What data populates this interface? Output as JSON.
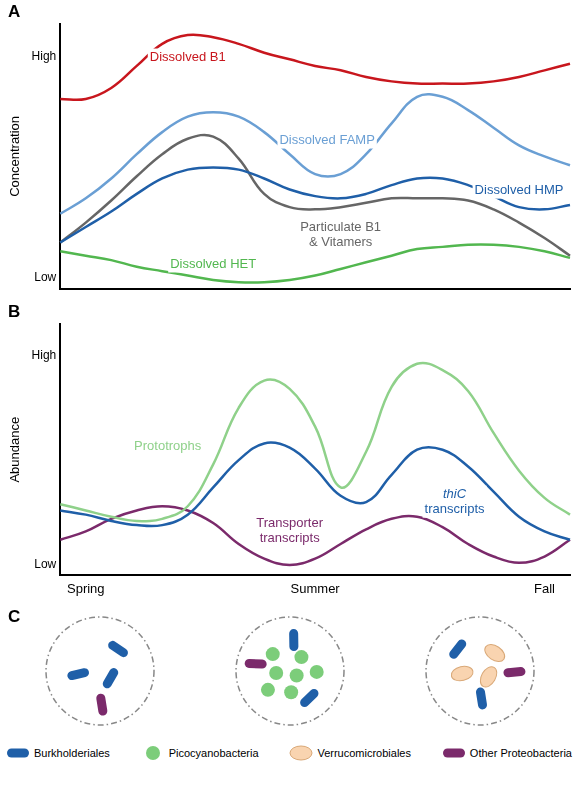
{
  "chart_data": [
    {
      "panel": "A",
      "type": "line",
      "y_label": "Concentration",
      "categories": [
        null,
        null,
        null,
        null,
        null,
        null,
        null,
        null,
        null,
        null,
        null,
        null,
        null,
        null,
        null,
        null,
        null,
        null,
        null,
        null,
        null
      ],
      "series": [
        {
          "name": "Dissolved B1",
          "color": "#c8161d",
          "values": [
            8.1,
            8.1,
            8.6,
            9.6,
            10.6,
            11.0,
            10.9,
            10.6,
            10.2,
            9.9,
            9.6,
            9.4,
            9.1,
            8.9,
            8.8,
            8.8,
            8.8,
            8.9,
            9.1,
            9.4,
            9.7
          ]
        },
        {
          "name": "Dissolved FAMP",
          "color": "#6a9fd4",
          "values": [
            2.9,
            3.6,
            4.5,
            5.6,
            6.6,
            7.3,
            7.5,
            7.3,
            6.6,
            5.6,
            4.7,
            4.7,
            5.6,
            7.0,
            8.2,
            8.2,
            7.6,
            6.8,
            6.0,
            5.5,
            5.1
          ]
        },
        {
          "name": "Dissolved HMP",
          "color": "#1f5fa8",
          "values": [
            1.6,
            2.3,
            3.0,
            3.8,
            4.5,
            4.9,
            5.0,
            4.9,
            4.5,
            4.0,
            3.7,
            3.6,
            3.8,
            4.2,
            4.5,
            4.5,
            4.2,
            3.7,
            3.2,
            3.1,
            3.3
          ]
        },
        {
          "name": "Particulate B1 & Vitamers",
          "color": "#666666",
          "values": [
            1.6,
            2.5,
            3.5,
            4.6,
            5.6,
            6.3,
            6.4,
            5.4,
            3.8,
            3.2,
            3.1,
            3.2,
            3.4,
            3.6,
            3.6,
            3.6,
            3.5,
            3.1,
            2.5,
            1.8,
            1.0
          ]
        },
        {
          "name": "Dissolved HET",
          "color": "#52b74f",
          "values": [
            1.2,
            1.0,
            0.8,
            0.5,
            0.3,
            0.1,
            -0.1,
            -0.2,
            -0.2,
            -0.1,
            0.1,
            0.4,
            0.7,
            1.0,
            1.3,
            1.4,
            1.5,
            1.5,
            1.4,
            1.2,
            0.9
          ]
        }
      ],
      "ylim": [
        -0.5,
        11.5
      ],
      "yticks": [
        {
          "value": 0,
          "label": "Low"
        },
        {
          "value": 10,
          "label": "High"
        }
      ],
      "grid": false,
      "tick_labels": "y"
    },
    {
      "panel": "B",
      "type": "line",
      "y_label": "Abundance",
      "categories": [
        null,
        "Spring",
        null,
        null,
        null,
        null,
        null,
        null,
        null,
        null,
        "Summer",
        null,
        null,
        null,
        null,
        null,
        null,
        null,
        null,
        "Fall",
        null
      ],
      "series": [
        {
          "name": "Prototrophs",
          "color": "#8fd18a",
          "values": [
            2.9,
            2.6,
            2.3,
            2.1,
            2.2,
            2.8,
            4.8,
            7.5,
            8.8,
            8.4,
            6.6,
            3.7,
            5.4,
            8.5,
            9.6,
            9.3,
            8.3,
            6.3,
            4.5,
            3.2,
            2.4
          ]
        },
        {
          "name": "thiC transcripts",
          "color": "#1f5fa8",
          "values": [
            2.6,
            2.4,
            2.1,
            1.9,
            1.9,
            2.4,
            3.7,
            5.0,
            5.8,
            5.6,
            4.6,
            3.3,
            3.0,
            4.3,
            5.5,
            5.5,
            4.7,
            3.5,
            2.3,
            1.6,
            1.2
          ]
        },
        {
          "name": "Transporter transcripts",
          "color": "#7b2a6b",
          "values": [
            1.2,
            1.6,
            2.2,
            2.6,
            2.8,
            2.6,
            2.0,
            1.0,
            0.3,
            0.0,
            0.3,
            1.0,
            1.7,
            2.2,
            2.3,
            1.8,
            1.0,
            0.4,
            0.1,
            0.4,
            1.2
          ]
        }
      ],
      "ylim": [
        -0.5,
        11.5
      ],
      "yticks": [
        {
          "value": 0,
          "label": "Low"
        },
        {
          "value": 10,
          "label": "High"
        }
      ],
      "grid": false
    }
  ],
  "diagram": {
    "panel": "C",
    "communities": [
      [
        {
          "taxon": "Burkholderiales",
          "count": 3
        },
        {
          "taxon": "Other Proteobacteria",
          "count": 1
        }
      ],
      [
        {
          "taxon": "Picocyanobacteria",
          "count": 7
        },
        {
          "taxon": "Burkholderiales",
          "count": 2
        },
        {
          "taxon": "Other Proteobacteria",
          "count": 1
        }
      ],
      [
        {
          "taxon": "Verrucomicrobiales",
          "count": 3
        },
        {
          "taxon": "Burkholderiales",
          "count": 2
        },
        {
          "taxon": "Other Proteobacteria",
          "count": 1
        }
      ]
    ],
    "legend": [
      {
        "label": "Burkholderiales",
        "color": "#1f5fa8",
        "marker": "rod"
      },
      {
        "label": "Picocyanobacteria",
        "color": "#7ccd7a",
        "marker": "coccus"
      },
      {
        "label": "Verrucomicrobiales",
        "color": "#f9d4b0",
        "marker": "oval"
      },
      {
        "label": "Other Proteobacteria",
        "color": "#7b2a6b",
        "marker": "rod"
      }
    ]
  }
}
